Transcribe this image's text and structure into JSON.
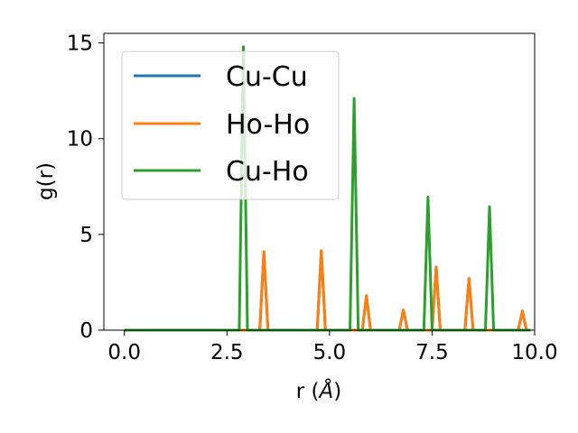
{
  "chart_data": {
    "type": "line",
    "title": "",
    "xlabel": "r (",
    "xlabel_symbol": "Å",
    "xlabel_close": ")",
    "ylabel": "g(r)",
    "xlim": [
      -0.5,
      10.0
    ],
    "ylim": [
      0,
      15.5
    ],
    "x_ticks": [
      0.0,
      2.5,
      5.0,
      7.5,
      10.0
    ],
    "x_tick_labels": [
      "0.0",
      "2.5",
      "5.0",
      "7.5",
      "10.0"
    ],
    "y_ticks": [
      0,
      5,
      10,
      15
    ],
    "y_tick_labels": [
      "0",
      "5",
      "10",
      "15"
    ],
    "grid": false,
    "legend_position": "top-left",
    "x_range": [
      0.0,
      9.9
    ],
    "peak_halfwidth": 0.1,
    "series": [
      {
        "name": "Cu-Cu",
        "color": "#1f77b4",
        "peaks": [
          [
            3.4,
            4.1
          ],
          [
            4.8,
            4.15
          ],
          [
            5.9,
            1.8
          ],
          [
            6.8,
            1.05
          ],
          [
            7.6,
            3.3
          ],
          [
            8.4,
            2.7
          ],
          [
            9.7,
            1.0
          ]
        ]
      },
      {
        "name": "Ho-Ho",
        "color": "#ff7f0e",
        "peaks": [
          [
            3.4,
            4.1
          ],
          [
            4.8,
            4.15
          ],
          [
            5.9,
            1.8
          ],
          [
            6.8,
            1.05
          ],
          [
            7.6,
            3.3
          ],
          [
            8.4,
            2.7
          ],
          [
            9.7,
            1.0
          ]
        ]
      },
      {
        "name": "Cu-Ho",
        "color": "#2ca02c",
        "peaks": [
          [
            2.9,
            14.8
          ],
          [
            5.6,
            12.1
          ],
          [
            7.4,
            6.95
          ],
          [
            8.9,
            6.45
          ]
        ]
      }
    ]
  }
}
